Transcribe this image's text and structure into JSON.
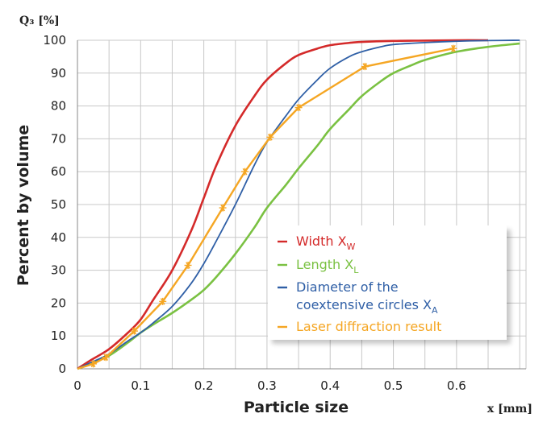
{
  "chart_data": {
    "type": "line",
    "title": "",
    "ylabel_unit": "Q₃ [%]",
    "ylabel": "Percent by volume",
    "xlabel": "Particle size",
    "xlabel_unit": "x [mm]",
    "xlim": [
      0,
      0.71
    ],
    "ylim": [
      0,
      100
    ],
    "x_ticks": [
      "0",
      "0.1",
      "0.2",
      "0.3",
      "0.4",
      "0.5",
      "0.6"
    ],
    "y_ticks": [
      "0",
      "10",
      "20",
      "30",
      "40",
      "50",
      "60",
      "70",
      "80",
      "90",
      "100"
    ],
    "grid": true,
    "legend_position": "center-right",
    "series": [
      {
        "name": "Width X",
        "subscript": "W",
        "color": "#d42a2a",
        "x": [
          0,
          0.02,
          0.05,
          0.08,
          0.1,
          0.12,
          0.15,
          0.18,
          0.2,
          0.22,
          0.25,
          0.28,
          0.3,
          0.33,
          0.35,
          0.38,
          0.4,
          0.43,
          0.45,
          0.5,
          0.55,
          0.6,
          0.65
        ],
        "y": [
          0,
          2.5,
          6,
          11,
          15,
          21,
          30,
          42,
          52,
          62,
          74,
          83,
          88,
          93,
          95.5,
          97.5,
          98.5,
          99.2,
          99.5,
          99.8,
          99.9,
          100,
          100
        ]
      },
      {
        "name": "Length X",
        "subscript": "L",
        "color": "#7ac142",
        "x": [
          0,
          0.02,
          0.05,
          0.08,
          0.1,
          0.12,
          0.15,
          0.18,
          0.2,
          0.22,
          0.25,
          0.28,
          0.3,
          0.33,
          0.35,
          0.38,
          0.4,
          0.43,
          0.45,
          0.48,
          0.5,
          0.53,
          0.55,
          0.6,
          0.65,
          0.7
        ],
        "y": [
          0,
          1.5,
          4,
          8,
          11,
          13.5,
          17,
          21,
          24,
          28,
          35,
          43,
          49,
          56,
          61,
          68,
          73,
          79,
          83,
          87.5,
          90,
          92.5,
          94,
          96.5,
          98,
          99
        ]
      },
      {
        "name": "Diameter of the coextensive circles X",
        "subscript": "A",
        "color": "#2f5fa6",
        "x": [
          0,
          0.02,
          0.05,
          0.08,
          0.1,
          0.12,
          0.15,
          0.18,
          0.2,
          0.22,
          0.25,
          0.28,
          0.3,
          0.33,
          0.35,
          0.38,
          0.4,
          0.43,
          0.45,
          0.48,
          0.5,
          0.55,
          0.6,
          0.65,
          0.7
        ],
        "y": [
          0,
          1.8,
          4.5,
          8.5,
          11,
          14,
          19,
          26,
          32,
          39,
          50,
          62,
          69,
          77,
          82,
          88,
          91.5,
          95,
          96.5,
          98,
          98.7,
          99.3,
          99.7,
          99.9,
          100
        ]
      },
      {
        "name": "Laser diffraction result",
        "subscript": "",
        "color": "#f5a623",
        "markers": true,
        "x": [
          0,
          0.025,
          0.045,
          0.09,
          0.135,
          0.175,
          0.23,
          0.265,
          0.305,
          0.35,
          0.455,
          0.595
        ],
        "y": [
          0,
          1.5,
          3.5,
          11.5,
          20.5,
          31.5,
          49,
          60,
          70.5,
          79.5,
          92,
          97.5
        ]
      }
    ]
  }
}
